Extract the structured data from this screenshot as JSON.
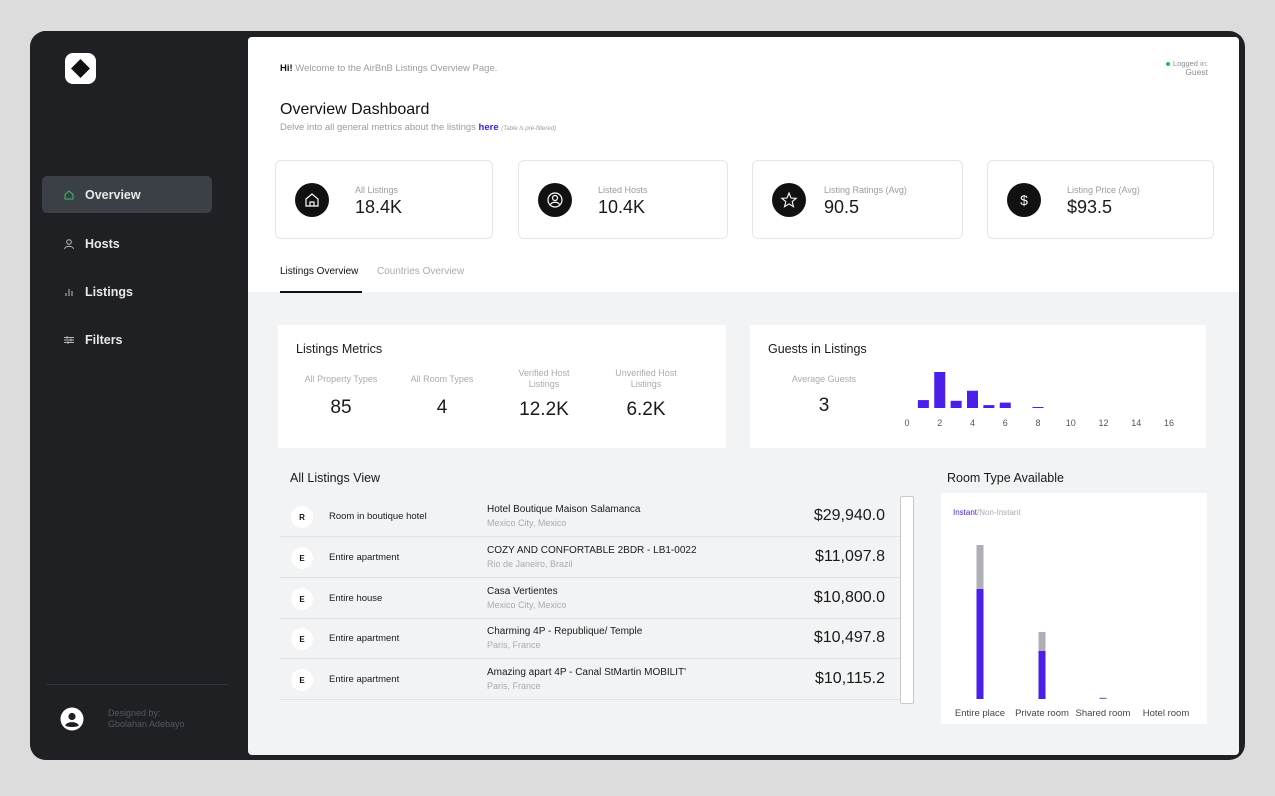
{
  "sidebar": {
    "nav": [
      {
        "label": "Overview",
        "icon": "home-icon",
        "active": true
      },
      {
        "label": "Hosts",
        "icon": "user-icon"
      },
      {
        "label": "Listings",
        "icon": "bar-chart-icon"
      },
      {
        "label": "Filters",
        "icon": "filter-icon"
      }
    ],
    "designer_line1": "Designed by:",
    "designer_line2": "Gbolahan Adebayo"
  },
  "header": {
    "greeting_bold": "Hi!",
    "greeting_text": " Welcome to the AirBnB Listings Overview Page.",
    "login_label": "Logged in:",
    "login_user": "Guest",
    "title": "Overview Dashboard",
    "subtitle": "Delve into all general metrics about the listings ",
    "subtitle_link": "here",
    "subtitle_note": "(Table is pre-filtered)"
  },
  "kpis": [
    {
      "label": "All Listings",
      "value": "18.4K",
      "icon": "home-icon"
    },
    {
      "label": "Listed Hosts",
      "value": "10.4K",
      "icon": "user-icon"
    },
    {
      "label": "Listing Ratings (Avg)",
      "value": "90.5",
      "icon": "star-icon"
    },
    {
      "label": "Listing Price (Avg)",
      "value": "$93.5",
      "icon": "dollar-icon"
    }
  ],
  "tabs": [
    {
      "label": "Listings Overview",
      "active": true
    },
    {
      "label": "Countries Overview",
      "active": false
    }
  ],
  "listings_metrics": {
    "title": "Listings Metrics",
    "items": [
      {
        "label": "All Property Types",
        "value": "85"
      },
      {
        "label": "All Room Types",
        "value": "4"
      },
      {
        "label": "Verified Host Listings",
        "value": "12.2K"
      },
      {
        "label": "Unverified Host Listings",
        "value": "6.2K"
      }
    ]
  },
  "guests": {
    "title": "Guests in Listings",
    "avg_label": "Average Guests",
    "avg_value": "3"
  },
  "listings_view": {
    "title": "All Listings View",
    "rows": [
      {
        "initial": "R",
        "type": "Room in boutique hotel",
        "name": "Hotel Boutique Maison Salamanca",
        "location": "Mexico City, Mexico",
        "price": "$29,940.0"
      },
      {
        "initial": "E",
        "type": "Entire apartment",
        "name": "COZY AND CONFORTABLE 2BDR - LB1-0022",
        "location": "Rio de Janeiro, Brazil",
        "price": "$11,097.8"
      },
      {
        "initial": "E",
        "type": "Entire house",
        "name": "Casa Vertientes",
        "location": "Mexico City, Mexico",
        "price": "$10,800.0"
      },
      {
        "initial": "E",
        "type": "Entire apartment",
        "name": "Charming 4P - Republique/ Temple",
        "location": "Paris, France",
        "price": "$10,497.8"
      },
      {
        "initial": "E",
        "type": "Entire apartment",
        "name": "Amazing apart 4P - Canal StMartin MOBILIT'",
        "location": "Paris, France",
        "price": "$10,115.2"
      }
    ]
  },
  "room_type": {
    "title": "Room Type Available",
    "legend_instant": "Instant",
    "legend_sep": "/",
    "legend_noninstant": "Non-Instant"
  },
  "colors": {
    "accent": "#4b1fe8",
    "noninstant": "#b0afb8",
    "sidebar": "#1f2023"
  },
  "chart_data": [
    {
      "type": "bar",
      "title": "Guests in Listings",
      "x": [
        1,
        2,
        3,
        4,
        5,
        6,
        8
      ],
      "values": [
        0.22,
        1.0,
        0.2,
        0.48,
        0.08,
        0.15,
        0.02
      ],
      "xticks": [
        "0",
        "2",
        "4",
        "6",
        "8",
        "10",
        "12",
        "14",
        "16"
      ],
      "xlim": [
        0,
        16
      ],
      "ylim": [
        0,
        1
      ]
    },
    {
      "type": "bar",
      "title": "Room Type Available",
      "stacked": true,
      "categories": [
        "Entire place",
        "Private room",
        "Shared room",
        "Hotel room"
      ],
      "series": [
        {
          "name": "Instant",
          "values": [
            11000,
            4800,
            60,
            0
          ]
        },
        {
          "name": "Non-Instant",
          "values": [
            4400,
            1900,
            80,
            0
          ]
        }
      ],
      "ylim": [
        0,
        16000
      ]
    }
  ]
}
